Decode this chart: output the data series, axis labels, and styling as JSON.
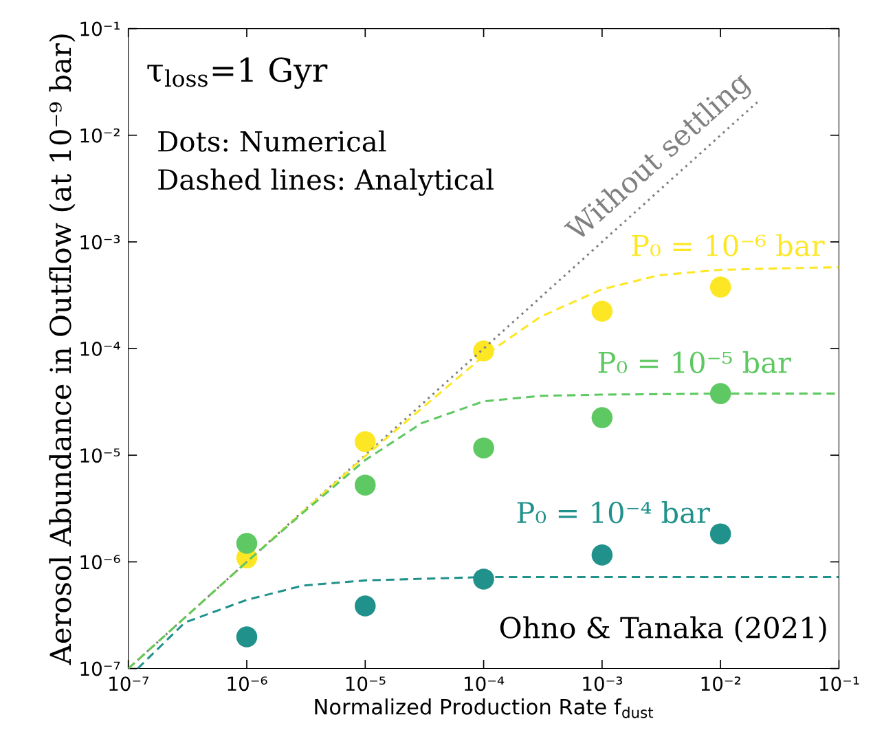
{
  "chart_data": {
    "type": "scatter",
    "xlabel": "Normalized Production Rate f$_{dust}$",
    "ylabel": "Aerosol Abundance in Outflow (at 10⁻⁹ bar)",
    "log": "xy",
    "xlim": [
      1e-07,
      0.1
    ],
    "ylim": [
      1e-07,
      0.1
    ],
    "xticks": [
      {
        "value": 1e-07,
        "label": "10⁻⁷"
      },
      {
        "value": 1e-06,
        "label": "10⁻⁶"
      },
      {
        "value": 1e-05,
        "label": "10⁻⁵"
      },
      {
        "value": 0.0001,
        "label": "10⁻⁴"
      },
      {
        "value": 0.001,
        "label": "10⁻³"
      },
      {
        "value": 0.01,
        "label": "10⁻²"
      },
      {
        "value": 0.1,
        "label": "10⁻¹"
      }
    ],
    "yticks": [
      {
        "value": 1e-07,
        "label": "10⁻⁷"
      },
      {
        "value": 1e-06,
        "label": "10⁻⁶"
      },
      {
        "value": 1e-05,
        "label": "10⁻⁵"
      },
      {
        "value": 0.0001,
        "label": "10⁻⁴"
      },
      {
        "value": 0.001,
        "label": "10⁻³"
      },
      {
        "value": 0.01,
        "label": "10⁻²"
      },
      {
        "value": 0.1,
        "label": "10⁻¹"
      }
    ],
    "grid": false,
    "annotations": [
      "τ$_{loss}$=1 Gyr",
      "Dots: Numerical",
      "Dashed lines: Analytical",
      "Ohno & Tanaka (2021)"
    ],
    "series": [
      {
        "name": "Without settling",
        "type": "line",
        "line_style": "dotted",
        "color": "#808080",
        "x": [
          1e-07,
          0.0207
        ],
        "values": [
          1e-07,
          0.0207
        ]
      },
      {
        "name": "P₀ = 10⁻⁶ bar",
        "type": "line",
        "line_style": "dashed",
        "color": "#fde725",
        "x": [
          1e-07,
          1e-06,
          1e-05,
          0.0001,
          0.0003,
          0.001,
          0.003,
          0.01,
          0.1
        ],
        "values": [
          1e-07,
          1e-06,
          9.8e-06,
          8.5e-05,
          0.000198,
          0.00036,
          0.000486,
          0.000548,
          0.00058
        ]
      },
      {
        "name": "P₀ = 10⁻⁵ bar",
        "type": "line",
        "line_style": "dashed",
        "color": "#5ec962",
        "x": [
          1e-07,
          1e-06,
          3e-06,
          1e-05,
          3e-05,
          0.0001,
          0.0003,
          0.001,
          0.01,
          0.1
        ],
        "values": [
          1e-07,
          1e-06,
          2.9e-06,
          9e-06,
          2e-05,
          3.2e-05,
          3.6e-05,
          3.7e-05,
          3.78e-05,
          3.78e-05
        ]
      },
      {
        "name": "P₀ = 10⁻⁴ bar",
        "type": "line",
        "line_style": "dashed",
        "color": "#21918c",
        "x": [
          1.2e-07,
          3e-07,
          1e-06,
          3e-06,
          1e-05,
          0.0001,
          0.001,
          0.1
        ],
        "values": [
          1e-07,
          2.7e-07,
          4.4e-07,
          6e-07,
          6.7e-07,
          7.2e-07,
          7.2e-07,
          7.2e-07
        ]
      },
      {
        "marker": "circle",
        "color": "#fde725",
        "x": [
          1e-06,
          1e-05,
          0.0001,
          0.001,
          0.01
        ],
        "values": [
          1.09e-06,
          1.34e-05,
          9.5e-05,
          0.000224,
          0.000377
        ]
      },
      {
        "marker": "circle",
        "color": "#5ec962",
        "x": [
          1e-06,
          1e-05,
          0.0001,
          0.001,
          0.01
        ],
        "values": [
          1.49e-06,
          5.25e-06,
          1.17e-05,
          2.25e-05,
          3.78e-05
        ]
      },
      {
        "marker": "circle",
        "color": "#21918c",
        "x": [
          1e-06,
          1e-05,
          0.0001,
          0.001,
          0.01
        ],
        "values": [
          1.98e-07,
          3.86e-07,
          6.9e-07,
          1.16e-06,
          1.83e-06
        ]
      }
    ]
  }
}
